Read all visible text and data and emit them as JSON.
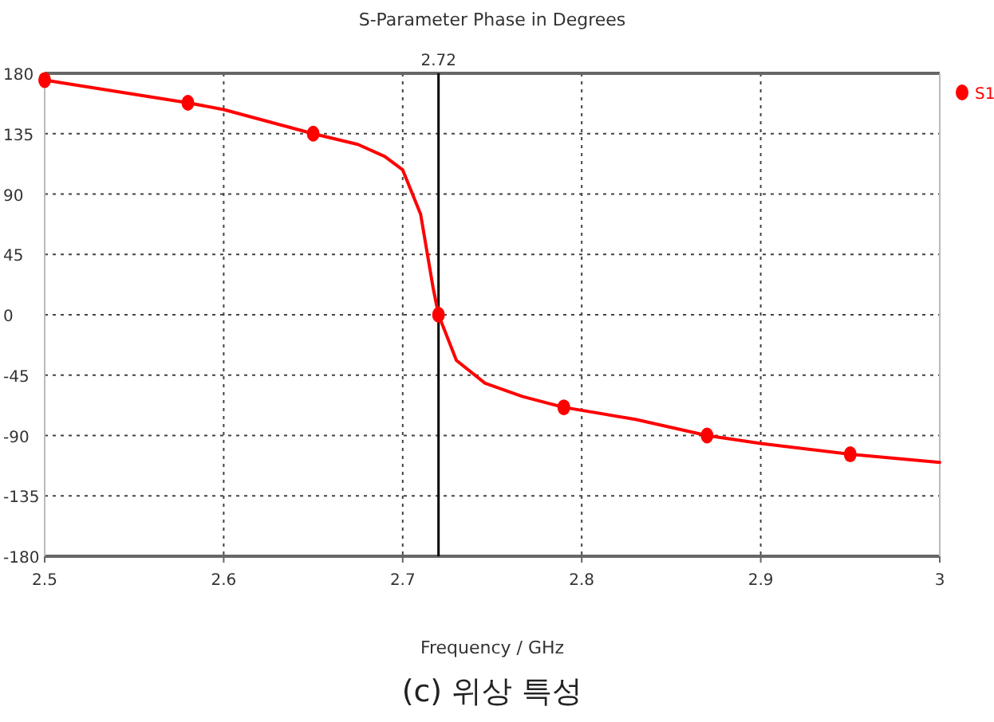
{
  "chart_data": {
    "type": "line",
    "title": "S-Parameter Phase in Degrees",
    "xlabel": "Frequency / GHz",
    "xlim": [
      2.5,
      3
    ],
    "ylim": [
      -180,
      180
    ],
    "xticks": [
      2.5,
      2.6,
      2.7,
      2.8,
      2.9,
      3
    ],
    "yticks": [
      -180,
      -135,
      -90,
      -45,
      0,
      45,
      90,
      135,
      180
    ],
    "grid": true,
    "legend": "top right",
    "series": [
      {
        "color": "#ff0000",
        "x": [
          2.5,
          2.58,
          2.6,
          2.65,
          2.675,
          2.69,
          2.7,
          2.71,
          2.717,
          2.72,
          2.73,
          2.746,
          2.767,
          2.79,
          2.83,
          2.87,
          2.9,
          2.95,
          3.0
        ],
        "values": [
          175,
          158,
          153,
          135,
          127,
          118,
          108,
          75,
          20,
          0,
          -34,
          -51,
          -61,
          -69,
          -78,
          -90,
          -96,
          -104,
          -110
        ]
      },
      {
        "name": "S1",
        "type": "scatter",
        "color": "#ff0000",
        "marker": "circle",
        "x": [
          2.5,
          2.58,
          2.65,
          2.72,
          2.79,
          2.87,
          2.95
        ],
        "values": [
          175,
          158,
          135,
          0,
          -69,
          -90,
          -104
        ]
      }
    ],
    "ref_lines": [
      {
        "axis": "x",
        "value": 2.72,
        "label": "2.72",
        "color": "#000000"
      }
    ],
    "annotations": [
      "(c) 위상 특성"
    ]
  }
}
